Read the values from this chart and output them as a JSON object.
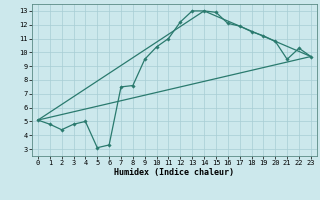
{
  "title": "",
  "xlabel": "Humidex (Indice chaleur)",
  "background_color": "#cce8ec",
  "grid_color": "#a8cdd4",
  "line_color": "#2a7a6e",
  "xlim": [
    -0.5,
    23.5
  ],
  "ylim": [
    2.5,
    13.5
  ],
  "xticks": [
    0,
    1,
    2,
    3,
    4,
    5,
    6,
    7,
    8,
    9,
    10,
    11,
    12,
    13,
    14,
    15,
    16,
    17,
    18,
    19,
    20,
    21,
    22,
    23
  ],
  "yticks": [
    3,
    4,
    5,
    6,
    7,
    8,
    9,
    10,
    11,
    12,
    13
  ],
  "line1_x": [
    0,
    1,
    2,
    3,
    4,
    5,
    6,
    7,
    8,
    9,
    10,
    11,
    12,
    13,
    14,
    15,
    16,
    17,
    18,
    19,
    20,
    21,
    22,
    23
  ],
  "line1_y": [
    5.1,
    4.8,
    4.4,
    4.8,
    5.0,
    3.1,
    3.3,
    7.5,
    7.6,
    9.5,
    10.4,
    11.0,
    12.2,
    13.0,
    13.0,
    12.9,
    12.1,
    11.9,
    11.5,
    11.2,
    10.8,
    9.5,
    10.3,
    9.7
  ],
  "line2_x": [
    0,
    23
  ],
  "line2_y": [
    5.1,
    9.7
  ],
  "line3_x": [
    0,
    14,
    23
  ],
  "line3_y": [
    5.1,
    13.0,
    9.7
  ],
  "marker_x": [
    0,
    1,
    2,
    3,
    4,
    5,
    6,
    7,
    8,
    9,
    10,
    11,
    12,
    13,
    14,
    15,
    16,
    17,
    18,
    19,
    20,
    21,
    22,
    23
  ],
  "marker_y": [
    5.1,
    4.8,
    4.4,
    4.8,
    5.0,
    3.1,
    3.3,
    7.5,
    7.6,
    9.5,
    10.4,
    11.0,
    12.2,
    13.0,
    13.0,
    12.9,
    12.1,
    11.9,
    11.5,
    11.2,
    10.8,
    9.5,
    10.3,
    9.7
  ]
}
